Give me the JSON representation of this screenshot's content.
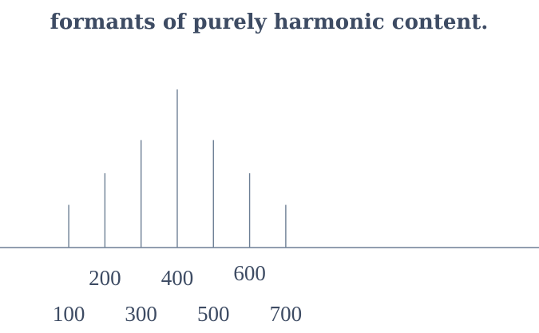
{
  "chart_data": {
    "type": "bar",
    "title": "formants of purely harmonic content.",
    "xlabel": "",
    "ylabel": "",
    "x": [
      100,
      200,
      300,
      400,
      500,
      600,
      700
    ],
    "values": [
      0.27,
      0.47,
      0.68,
      1.0,
      0.68,
      0.47,
      0.27
    ],
    "xlim": [
      -90,
      1400
    ],
    "ylim": [
      0,
      1.0
    ],
    "tick_labels_upper": [
      "200",
      "400",
      "600"
    ],
    "tick_labels_lower": [
      "100",
      "300",
      "500",
      "700"
    ],
    "grid": false,
    "legend": "none"
  },
  "colors": {
    "line": "#6d7f95",
    "text": "#3d4b63"
  }
}
